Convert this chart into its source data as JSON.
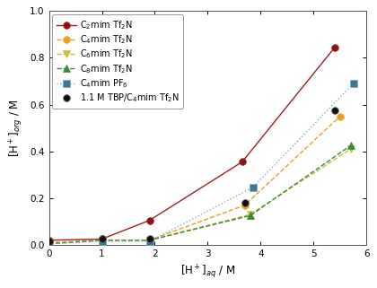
{
  "title": "",
  "xlabel": "[H$^+$]$_{aq}$ / M",
  "ylabel": "[H$^+$]$_{org}$ / M",
  "xlim": [
    0,
    6
  ],
  "ylim": [
    0,
    1.0
  ],
  "xticks": [
    0,
    1,
    2,
    3,
    4,
    5,
    6
  ],
  "yticks": [
    0.0,
    0.2,
    0.4,
    0.6,
    0.8,
    1.0
  ],
  "series": [
    {
      "label": "C$_2$mim Tf$_2$N",
      "x": [
        0.0,
        1.0,
        1.9,
        3.65,
        5.4
      ],
      "y": [
        0.02,
        0.025,
        0.105,
        0.355,
        0.845
      ],
      "color": "#9B2020",
      "linestyle": "-",
      "marker": "o",
      "markercolor": "#8B1515",
      "linewidth": 1.0,
      "markersize": 5.5
    },
    {
      "label": "C$_4$mim Tf$_2$N",
      "x": [
        0.0,
        1.0,
        1.9,
        3.7,
        5.5
      ],
      "y": [
        0.01,
        0.02,
        0.02,
        0.17,
        0.55
      ],
      "color": "#E8A020",
      "linestyle": "--",
      "marker": "o",
      "markercolor": "#E8A020",
      "linewidth": 1.0,
      "markersize": 5.5
    },
    {
      "label": "C$_6$mim Tf$_2$N",
      "x": [
        0.0,
        1.0,
        1.9,
        3.8,
        5.7
      ],
      "y": [
        0.005,
        0.02,
        0.02,
        0.13,
        0.41
      ],
      "color": "#C8C030",
      "linestyle": "--",
      "marker": "v",
      "markercolor": "#C8C030",
      "linewidth": 1.0,
      "markersize": 5.5
    },
    {
      "label": "C$_8$mim Tf$_2$N",
      "x": [
        0.0,
        1.0,
        1.9,
        3.8,
        5.7
      ],
      "y": [
        0.005,
        0.02,
        0.02,
        0.125,
        0.425
      ],
      "color": "#3A8A3A",
      "linestyle": "--",
      "marker": "^",
      "markercolor": "#3A8A3A",
      "linewidth": 1.0,
      "markersize": 5.5
    },
    {
      "label": "C$_4$mim PF$_6$",
      "x": [
        0.0,
        1.0,
        1.9,
        3.85,
        5.75
      ],
      "y": [
        0.005,
        0.015,
        0.015,
        0.245,
        0.69
      ],
      "color": "#8AABBA",
      "linestyle": ":",
      "marker": "s",
      "markercolor": "#3A7898",
      "linewidth": 1.0,
      "markersize": 5.5
    },
    {
      "label": "1.1 M TBP/C$_4$mim Tf$_2$N",
      "x": [
        0.0,
        1.0,
        1.9,
        3.7,
        5.4
      ],
      "y": [
        0.015,
        0.025,
        0.025,
        0.18,
        0.575
      ],
      "color": "#111111",
      "linestyle": "none",
      "marker": "o",
      "markercolor": "#111111",
      "linewidth": 0,
      "markersize": 5.5
    }
  ],
  "background_color": "#ffffff",
  "legend_fontsize": 7.0,
  "axis_fontsize": 8.5,
  "tick_fontsize": 7.5
}
